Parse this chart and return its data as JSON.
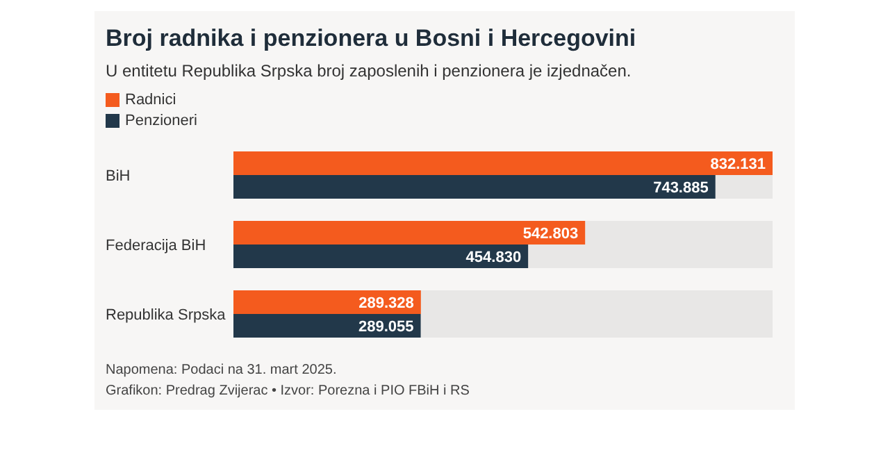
{
  "chart_data": {
    "type": "bar",
    "orientation": "horizontal",
    "title": "Broj radnika i penzionera u Bosni i Hercegovini",
    "subtitle": "U entitetu Republika Srpska broj zaposlenih i penzionera je izjednačen.",
    "categories": [
      "BiH",
      "Federacija BiH",
      "Republika Srpska"
    ],
    "series": [
      {
        "name": "Radnici",
        "color": "#f45b1e",
        "values": [
          832131,
          542803,
          289328
        ],
        "value_labels": [
          "832.131",
          "542.803",
          "289.328"
        ]
      },
      {
        "name": "Penzioneri",
        "color": "#22384a",
        "values": [
          743885,
          454830,
          289055
        ],
        "value_labels": [
          "743.885",
          "454.830",
          "289.055"
        ]
      }
    ],
    "legend": "top left",
    "annotations": [
      "Napomena: Podaci na 31. mart 2025.",
      "Grafikon: Predrag Zvijerac • Izvor: Porezna i PIO FBiH i RS"
    ]
  }
}
